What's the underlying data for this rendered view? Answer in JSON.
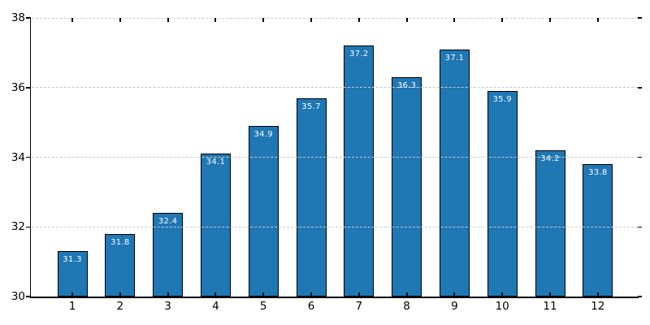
{
  "chart_data": {
    "type": "bar",
    "categories": [
      "1",
      "2",
      "3",
      "4",
      "5",
      "6",
      "7",
      "8",
      "9",
      "10",
      "11",
      "12"
    ],
    "values": [
      31.3,
      31.8,
      32.4,
      34.1,
      34.9,
      35.7,
      37.2,
      36.3,
      37.1,
      35.9,
      34.2,
      33.8
    ],
    "bar_value_labels": [
      "31.3",
      "31.8",
      "32.4",
      "34.1",
      "34.9",
      "35.7",
      "37.2",
      "36.3",
      "37.1",
      "35.9",
      "34.2",
      "33.8"
    ],
    "ylim": [
      30,
      38
    ],
    "yticks": [
      30,
      32,
      34,
      36,
      38
    ],
    "ytick_labels": [
      "30",
      "32",
      "34",
      "36",
      "38"
    ],
    "grid": "horizontal-dashed",
    "legend": "none",
    "ticks": "x-inward-top-and-bottom, y-outward-left-and-right",
    "colors": {
      "bar_fill": "#1f77b4",
      "bar_edge": "#000000",
      "grid": "#c9c9c9",
      "axis": "#000000",
      "tick_text": "#000000",
      "value_label_text": "#ffffff"
    }
  }
}
